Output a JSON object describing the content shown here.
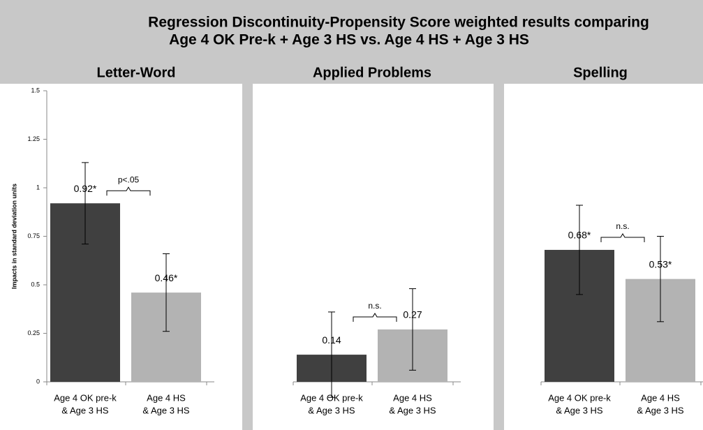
{
  "header": {
    "title": [
      "Regression Discontinuity-Propensity Score weighted results comparing",
      "Age 4 OK Pre-k + Age 3 HS vs. Age 4 HS + Age 3 HS"
    ]
  },
  "chart_data": [
    {
      "type": "bar",
      "title": "Letter-Word",
      "ylabel": "Impacts in standard deviation units",
      "categories": [
        [
          "Age 4 OK pre-k",
          "& Age 3 HS"
        ],
        [
          "Age 4 HS",
          "& Age 3 HS"
        ]
      ],
      "values": [
        0.92,
        0.46
      ],
      "value_labels": [
        "0.92*",
        "0.46*"
      ],
      "errors": [
        0.21,
        0.2
      ],
      "colors": [
        "#404040",
        "#b3b3b3"
      ],
      "annotation": "p<.05",
      "ylim": [
        0,
        1.5
      ],
      "yticks": [
        0,
        0.25,
        0.5,
        0.75,
        1,
        1.25,
        1.5
      ]
    },
    {
      "type": "bar",
      "title": "Applied Problems",
      "categories": [
        [
          "Age 4 OK pre-k",
          "& Age 3 HS"
        ],
        [
          "Age 4 HS",
          "& Age 3 HS"
        ]
      ],
      "values": [
        0.14,
        0.27
      ],
      "value_labels": [
        "0.14",
        "0.27"
      ],
      "errors": [
        0.22,
        0.21
      ],
      "colors": [
        "#404040",
        "#b3b3b3"
      ],
      "annotation": "n.s.",
      "ylim": [
        0,
        1.5
      ]
    },
    {
      "type": "bar",
      "title": "Spelling",
      "categories": [
        [
          "Age 4 OK pre-k",
          "& Age 3 HS"
        ],
        [
          "Age 4 HS",
          "& Age 3 HS"
        ]
      ],
      "values": [
        0.68,
        0.53
      ],
      "value_labels": [
        "0.68*",
        "0.53*"
      ],
      "errors": [
        0.23,
        0.22
      ],
      "colors": [
        "#404040",
        "#b3b3b3"
      ],
      "annotation": "n.s.",
      "ylim": [
        0,
        1.5
      ]
    }
  ]
}
